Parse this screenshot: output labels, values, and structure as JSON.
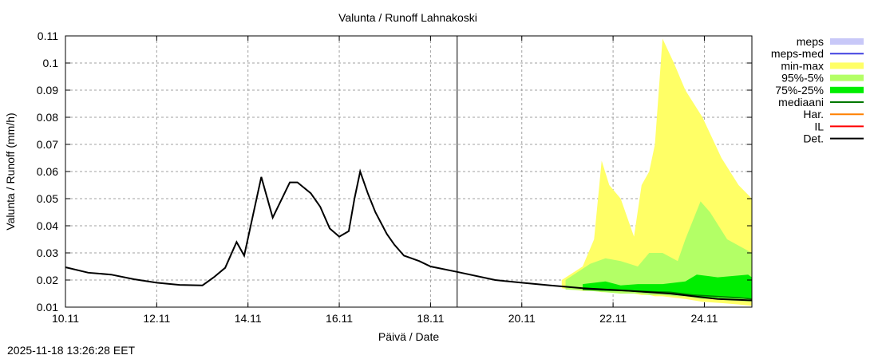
{
  "chart_data": {
    "type": "area",
    "title": "Valunta / Runoff  Lahnakoski",
    "xlabel": "Päivä / Date",
    "ylabel": "Valunta / Runoff (mm/h)",
    "xlim": [
      "2025-11-10 00:00",
      "2025-11-25 01:00"
    ],
    "ylim": [
      0.01,
      0.11
    ],
    "yticks": [
      "0.01",
      "0.02",
      "0.03",
      "0.04",
      "0.05",
      "0.06",
      "0.07",
      "0.08",
      "0.09",
      "0.1",
      "0.11"
    ],
    "xticks": [
      {
        "label": "10.11",
        "t": "2025-11-10 00:00"
      },
      {
        "label": "12.11",
        "t": "2025-11-12 00:00"
      },
      {
        "label": "14.11",
        "t": "2025-11-14 00:00"
      },
      {
        "label": "16.11",
        "t": "2025-11-16 00:00"
      },
      {
        "label": "18.11",
        "t": "2025-11-18 00:00"
      },
      {
        "label": "20.11",
        "t": "2025-11-20 00:00"
      },
      {
        "label": "22.11",
        "t": "2025-11-22 00:00"
      },
      {
        "label": "24.11",
        "t": "2025-11-24 00:00"
      }
    ],
    "grid": true,
    "forecast_start": "2025-11-18 14:00",
    "legend_position": "right",
    "legend": [
      {
        "name": "meps",
        "color": "#c8c8f8",
        "kind": "band"
      },
      {
        "name": "meps-med",
        "color": "#4040e0",
        "kind": "line"
      },
      {
        "name": "min-max",
        "color": "#ffff66",
        "kind": "band"
      },
      {
        "name": "95%-5%",
        "color": "#b3ff66",
        "kind": "band"
      },
      {
        "name": "75%-25%",
        "color": "#00ee00",
        "kind": "band"
      },
      {
        "name": "mediaani",
        "color": "#007700",
        "kind": "line"
      },
      {
        "name": "Har.",
        "color": "#ff8000",
        "kind": "line"
      },
      {
        "name": "IL",
        "color": "#ff0000",
        "kind": "line"
      },
      {
        "name": "Det.",
        "color": "#000000",
        "kind": "line"
      }
    ],
    "bands": [
      {
        "name": "min-max",
        "color": "#ffff66",
        "x": [
          "2025-11-20 21:00",
          "2025-11-21 08:00",
          "2025-11-21 14:00",
          "2025-11-21 18:00",
          "2025-11-21 22:00",
          "2025-11-22 04:00",
          "2025-11-22 11:00",
          "2025-11-22 15:00",
          "2025-11-22 19:00",
          "2025-11-22 22:00",
          "2025-11-23 02:00",
          "2025-11-23 08:00",
          "2025-11-23 14:00",
          "2025-11-23 23:00",
          "2025-11-24 09:00",
          "2025-11-24 18:00",
          "2025-11-25 01:00"
        ],
        "lo": [
          0.017,
          0.016,
          0.016,
          0.0155,
          0.0155,
          0.015,
          0.015,
          0.0145,
          0.0145,
          0.014,
          0.014,
          0.0135,
          0.013,
          0.012,
          0.0115,
          0.011,
          0.0105
        ],
        "hi": [
          0.02,
          0.025,
          0.035,
          0.064,
          0.055,
          0.05,
          0.036,
          0.055,
          0.06,
          0.07,
          0.109,
          0.1,
          0.09,
          0.08,
          0.065,
          0.055,
          0.05
        ]
      },
      {
        "name": "95%-5%",
        "color": "#b3ff66",
        "x": [
          "2025-11-20 23:00",
          "2025-11-21 12:00",
          "2025-11-21 20:00",
          "2025-11-22 04:00",
          "2025-11-22 13:00",
          "2025-11-22 19:00",
          "2025-11-23 02:00",
          "2025-11-23 10:00",
          "2025-11-23 14:00",
          "2025-11-23 22:00",
          "2025-11-24 03:00",
          "2025-11-24 12:00",
          "2025-11-25 01:00"
        ],
        "lo": [
          0.0165,
          0.016,
          0.0155,
          0.015,
          0.015,
          0.0145,
          0.0145,
          0.014,
          0.014,
          0.013,
          0.013,
          0.0125,
          0.012
        ],
        "hi": [
          0.02,
          0.026,
          0.028,
          0.027,
          0.025,
          0.03,
          0.03,
          0.027,
          0.035,
          0.049,
          0.045,
          0.035,
          0.03
        ]
      },
      {
        "name": "75%-25%",
        "color": "#00ee00",
        "x": [
          "2025-11-21 08:00",
          "2025-11-21 20:00",
          "2025-11-22 04:00",
          "2025-11-22 13:00",
          "2025-11-23 02:00",
          "2025-11-23 14:00",
          "2025-11-23 20:00",
          "2025-11-24 07:00",
          "2025-11-24 23:00",
          "2025-11-25 01:00"
        ],
        "lo": [
          0.0165,
          0.016,
          0.016,
          0.0155,
          0.015,
          0.0145,
          0.014,
          0.0135,
          0.013,
          0.013
        ],
        "hi": [
          0.0185,
          0.0195,
          0.018,
          0.0185,
          0.0185,
          0.0195,
          0.022,
          0.021,
          0.022,
          0.021
        ]
      }
    ],
    "series": [
      {
        "name": "mediaani",
        "color": "#007700",
        "x": [
          "2025-11-21 08:00",
          "2025-11-22 09:00",
          "2025-11-23 06:00",
          "2025-11-23 18:00",
          "2025-11-24 18:00",
          "2025-11-25 01:00"
        ],
        "y": [
          0.0165,
          0.016,
          0.0155,
          0.0145,
          0.0135,
          0.013
        ]
      },
      {
        "name": "Det.",
        "color": "#000000",
        "x": [
          "2025-11-10 00:00",
          "2025-11-10 12:00",
          "2025-11-11 00:00",
          "2025-11-11 12:00",
          "2025-11-12 00:00",
          "2025-11-12 12:00",
          "2025-11-13 00:00",
          "2025-11-13 06:00",
          "2025-11-13 12:00",
          "2025-11-13 18:00",
          "2025-11-13 22:00",
          "2025-11-14 07:00",
          "2025-11-14 13:00",
          "2025-11-14 22:00",
          "2025-11-15 02:00",
          "2025-11-15 09:00",
          "2025-11-15 14:00",
          "2025-11-15 19:00",
          "2025-11-16 00:00",
          "2025-11-16 05:00",
          "2025-11-16 08:00",
          "2025-11-16 11:00",
          "2025-11-16 15:00",
          "2025-11-16 19:00",
          "2025-11-17 01:00",
          "2025-11-17 05:00",
          "2025-11-17 10:00",
          "2025-11-17 18:00",
          "2025-11-18 00:00",
          "2025-11-18 14:00",
          "2025-11-19 10:00",
          "2025-11-20 00:00",
          "2025-11-20 15:00",
          "2025-11-21 08:00",
          "2025-11-22 09:00",
          "2025-11-23 06:00",
          "2025-11-24 07:00",
          "2025-11-25 01:00"
        ],
        "y": [
          0.0247,
          0.0227,
          0.022,
          0.0203,
          0.019,
          0.0182,
          0.018,
          0.021,
          0.0245,
          0.034,
          0.029,
          0.058,
          0.043,
          0.056,
          0.056,
          0.052,
          0.047,
          0.039,
          0.036,
          0.038,
          0.05,
          0.06,
          0.052,
          0.045,
          0.037,
          0.033,
          0.029,
          0.027,
          0.025,
          0.023,
          0.02,
          0.019,
          0.018,
          0.017,
          0.016,
          0.015,
          0.013,
          0.0125
        ]
      }
    ]
  },
  "footer": {
    "timestamp": "2025-11-18 13:26:28 EET"
  }
}
